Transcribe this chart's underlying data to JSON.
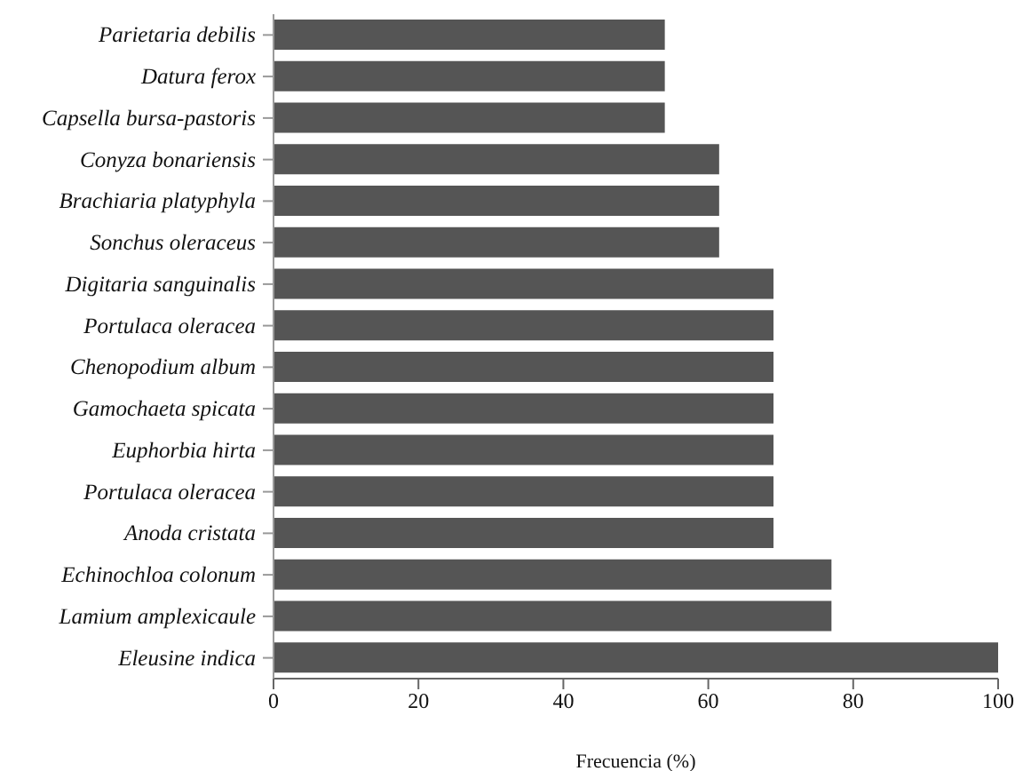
{
  "chart_data": {
    "type": "bar",
    "orientation": "horizontal",
    "xlabel": "Frecuencia (%)",
    "categories": [
      "Parietaria debilis",
      "Datura ferox",
      "Capsella bursa-pastoris",
      "Conyza bonariensis",
      "Brachiaria platyphyla",
      "Sonchus oleraceus",
      "Digitaria sanguinalis",
      "Portulaca oleracea",
      "Chenopodium album",
      "Gamochaeta spicata",
      "Euphorbia hirta",
      "Portulaca oleracea",
      "Anoda cristata",
      "Echinochloa colonum",
      "Lamium amplexicaule",
      "Eleusine indica"
    ],
    "values": [
      54,
      54,
      54,
      61.5,
      61.5,
      61.5,
      69,
      69,
      69,
      69,
      69,
      69,
      69,
      77,
      77,
      100
    ],
    "color": "#555555",
    "xlim": [
      0,
      100
    ],
    "xticks": [
      0,
      20,
      40,
      60,
      80,
      100
    ],
    "grid": false
  }
}
